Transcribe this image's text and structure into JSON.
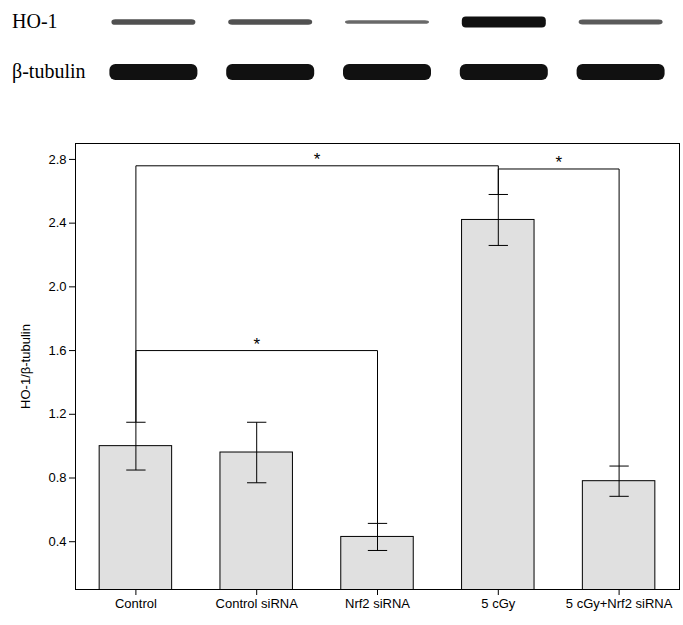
{
  "chart_data": {
    "type": "bar",
    "blot": {
      "rows": [
        "HO-1",
        "β-tubulin"
      ]
    },
    "categories": [
      "Control",
      "Control siRNA",
      "Nrf2 siRNA",
      "5 cGy",
      "5 cGy+Nrf2 siRNA"
    ],
    "values": [
      1.0,
      0.96,
      0.43,
      2.42,
      0.78
    ],
    "errors": [
      0.15,
      0.19,
      0.085,
      0.16,
      0.095
    ],
    "y_label": "HO-1/β-tubulin",
    "ylim": [
      0.1,
      2.9
    ],
    "yticks": [
      0.4,
      0.8,
      1.2,
      1.6,
      {
        "value": 2,
        "label": "2.0"
      },
      2.4,
      2.8
    ],
    "color": "#e0e0e0",
    "grid": false,
    "annotations": [
      {
        "from": "Control",
        "to": "5 cGy",
        "y": 2.76,
        "text": "*"
      },
      {
        "from": "5 cGy",
        "to": "5 cGy+Nrf2 siRNA",
        "y": 2.74,
        "text": "*"
      },
      {
        "from": "Control",
        "to": "Nrf2 siRNA",
        "y": 1.6,
        "text": "*"
      }
    ]
  }
}
